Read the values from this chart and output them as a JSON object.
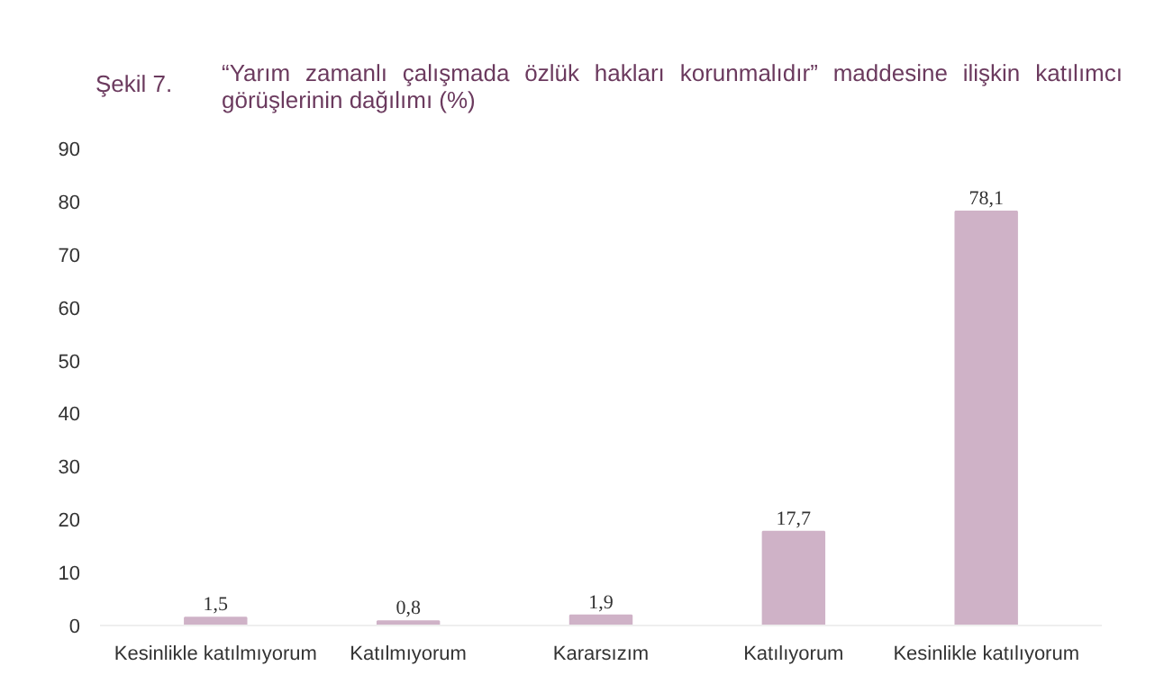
{
  "chart_data": {
    "type": "bar",
    "title": "Şekil 7.",
    "subtitle": "“Yarım zamanlı çalışmada özlük hakları korunmalıdır” maddesine ilişkin katılımcı görüşlerinin dağılımı (%)",
    "categories": [
      "Kesinlikle katılmıyorum",
      "Katılmıyorum",
      "Kararsızım",
      "Katılıyorum",
      "Kesinlikle katılıyorum"
    ],
    "values": [
      1.5,
      0.8,
      1.9,
      17.7,
      78.1
    ],
    "value_labels": [
      "1,5",
      "0,8",
      "1,9",
      "17,7",
      "78,1"
    ],
    "color": "#cfb2c7",
    "ylim": [
      0,
      90
    ],
    "yticks": [
      0,
      10,
      20,
      30,
      40,
      50,
      60,
      70,
      80,
      90
    ],
    "grid": false
  }
}
